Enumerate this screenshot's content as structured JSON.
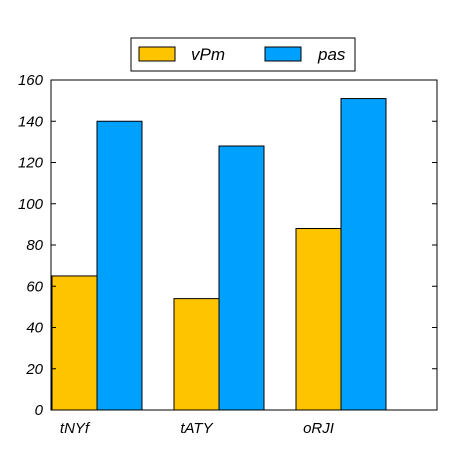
{
  "chart_data": {
    "type": "bar",
    "categories": [
      "tNYf",
      "tATY",
      "oRJI"
    ],
    "series": [
      {
        "name": "vPm",
        "values": [
          65,
          54,
          88
        ],
        "color": "#ffc400"
      },
      {
        "name": "pas",
        "values": [
          140,
          128,
          151
        ],
        "color": "#00a0ff"
      }
    ],
    "title": "",
    "xlabel": "",
    "ylabel": "",
    "ylim": [
      0,
      160
    ],
    "yticks": [
      0,
      20,
      40,
      60,
      80,
      100,
      120,
      140,
      160
    ],
    "grid": false,
    "legend": "top-center"
  }
}
